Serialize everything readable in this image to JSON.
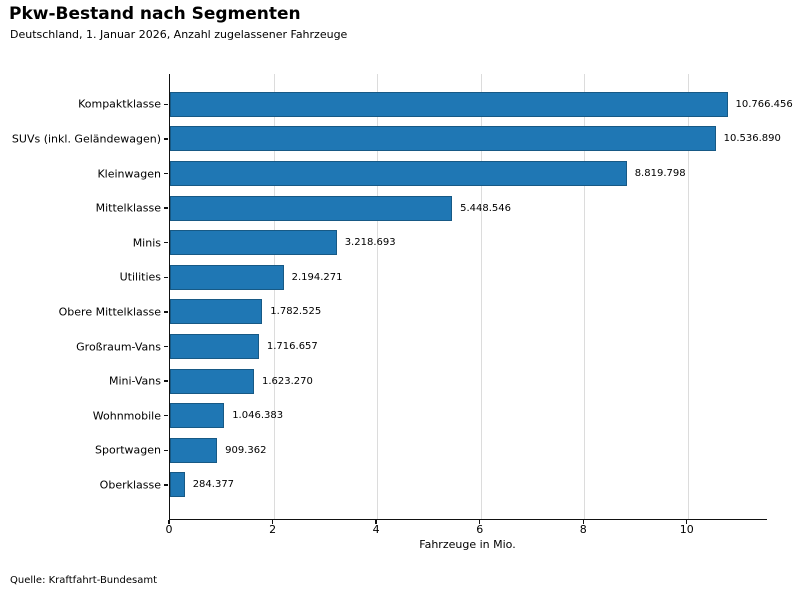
{
  "chart_data": {
    "type": "bar",
    "orientation": "horizontal",
    "title": "Pkw-Bestand nach Segmenten",
    "subtitle": "Deutschland, 1. Januar 2026, Anzahl zugelassener Fahrzeuge",
    "xlabel": "Fahrzeuge in Mio.",
    "xlim": [
      0,
      11.53
    ],
    "xticks": [
      0,
      2,
      4,
      6,
      8,
      10
    ],
    "grid": "vertical-light-gray",
    "legend": "none",
    "bar_color": "#1f77b4",
    "bar_edge_color": "#175985",
    "categories": [
      "Kompaktklasse",
      "SUVs (inkl. Geländewagen)",
      "Kleinwagen",
      "Mittelklasse",
      "Minis",
      "Utilities",
      "Obere Mittelklasse",
      "Großraum-Vans",
      "Mini-Vans",
      "Wohnmobile",
      "Sportwagen",
      "Oberklasse"
    ],
    "values": [
      10766456,
      10536890,
      8819798,
      5448546,
      3218693,
      2194271,
      1782525,
      1716657,
      1623270,
      1046383,
      909362,
      284377
    ],
    "value_labels": [
      "10.766.456",
      "10.536.890",
      "8.819.798",
      "5.448.546",
      "3.218.693",
      "2.194.271",
      "1.782.525",
      "1.716.657",
      "1.623.270",
      "1.046.383",
      "909.362",
      "284.377"
    ],
    "source": "Quelle: Kraftfahrt-Bundesamt"
  }
}
